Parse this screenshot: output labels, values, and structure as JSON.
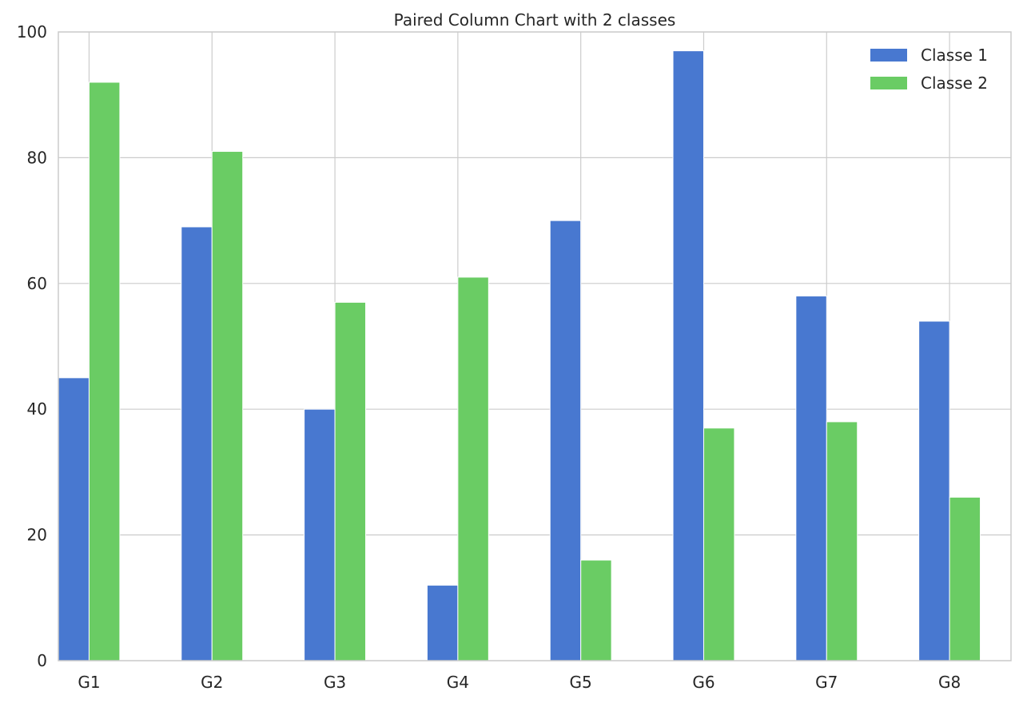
{
  "chart_data": {
    "type": "bar",
    "title": "Paired Column Chart with 2 classes",
    "xlabel": "",
    "ylabel": "",
    "categories": [
      "G1",
      "G2",
      "G3",
      "G4",
      "G5",
      "G6",
      "G7",
      "G8"
    ],
    "series": [
      {
        "name": "Classe 1",
        "color": "#4878D0",
        "values": [
          45,
          69,
          40,
          12,
          70,
          97,
          58,
          54
        ]
      },
      {
        "name": "Classe 2",
        "color": "#6ACC64",
        "values": [
          92,
          81,
          57,
          61,
          16,
          37,
          38,
          26
        ]
      }
    ],
    "ylim": [
      0,
      100
    ],
    "yticks": [
      0,
      20,
      40,
      60,
      80,
      100
    ],
    "grid": true,
    "legend_position": "top-right"
  }
}
